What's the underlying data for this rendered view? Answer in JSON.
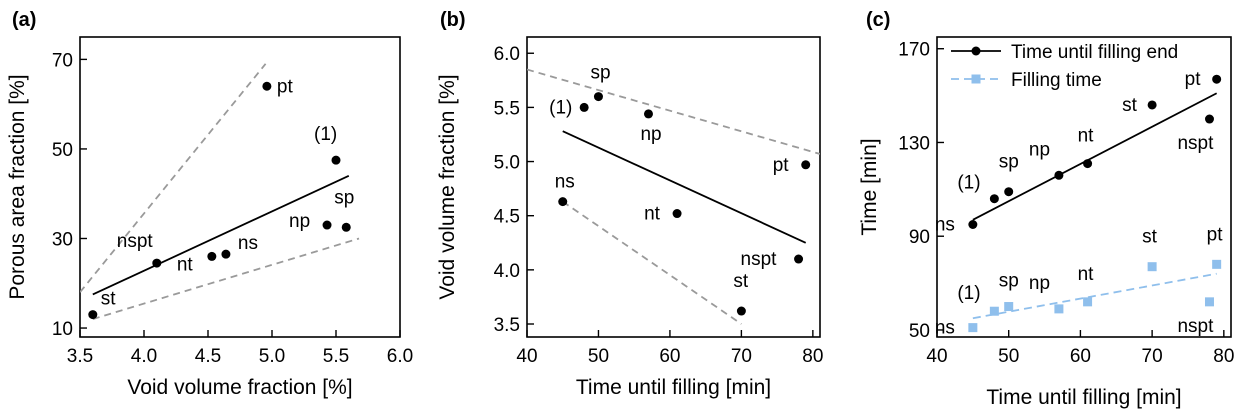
{
  "chart_data": [
    {
      "type": "scatter",
      "panel_label": "(a)",
      "xlabel": "Void volume fraction [%]",
      "ylabel": "Porous area fraction [%]",
      "xlim": [
        3.5,
        6.0
      ],
      "ylim": [
        8,
        75
      ],
      "xticks": [
        3.5,
        4.0,
        4.5,
        5.0,
        5.5,
        6.0
      ],
      "xtick_labels": [
        "3.5",
        "4.0",
        "4.5",
        "5.0",
        "5.5",
        "6.0"
      ],
      "yticks": [
        10,
        30,
        50,
        70
      ],
      "ytick_labels": [
        "10",
        "30",
        "50",
        "70"
      ],
      "points": [
        {
          "label": "st",
          "x": 3.6,
          "y": 13
        },
        {
          "label": "nspt",
          "x": 4.1,
          "y": 24.5
        },
        {
          "label": "nt",
          "x": 4.53,
          "y": 26
        },
        {
          "label": "ns",
          "x": 4.64,
          "y": 26.5
        },
        {
          "label": "pt",
          "x": 4.96,
          "y": 64
        },
        {
          "label": "(1)",
          "x": 5.5,
          "y": 47.5
        },
        {
          "label": "np",
          "x": 5.43,
          "y": 33
        },
        {
          "label": "sp",
          "x": 5.58,
          "y": 32.5
        }
      ],
      "fit_line": {
        "x": [
          3.6,
          5.6
        ],
        "y": [
          17.5,
          44
        ]
      },
      "bound_lines": [
        {
          "x": [
            3.5,
            4.95
          ],
          "y": [
            18,
            69
          ]
        },
        {
          "x": [
            3.6,
            5.68
          ],
          "y": [
            12,
            30
          ]
        }
      ]
    },
    {
      "type": "scatter",
      "panel_label": "(b)",
      "xlabel": "Time until filling [min]",
      "ylabel": "Void volume fraction [%]",
      "xlim": [
        40,
        81
      ],
      "ylim": [
        3.38,
        6.15
      ],
      "xticks": [
        40,
        50,
        60,
        70,
        80
      ],
      "xtick_labels": [
        "40",
        "50",
        "60",
        "70",
        "80"
      ],
      "yticks": [
        3.5,
        4.0,
        4.5,
        5.0,
        5.5,
        6.0
      ],
      "ytick_labels": [
        "3.5",
        "4.0",
        "4.5",
        "5.0",
        "5.5",
        "6.0"
      ],
      "points": [
        {
          "label": "ns",
          "x": 45,
          "y": 4.63
        },
        {
          "label": "(1)",
          "x": 48,
          "y": 5.5
        },
        {
          "label": "sp",
          "x": 50,
          "y": 5.6
        },
        {
          "label": "np",
          "x": 57,
          "y": 5.44
        },
        {
          "label": "nt",
          "x": 61,
          "y": 4.52
        },
        {
          "label": "st",
          "x": 70,
          "y": 3.62
        },
        {
          "label": "nspt",
          "x": 78,
          "y": 4.1
        },
        {
          "label": "pt",
          "x": 79,
          "y": 4.97
        }
      ],
      "fit_line": {
        "x": [
          45,
          79
        ],
        "y": [
          5.28,
          4.25
        ]
      },
      "bound_lines": [
        {
          "x": [
            40,
            81
          ],
          "y": [
            5.85,
            5.07
          ]
        },
        {
          "x": [
            45,
            70
          ],
          "y": [
            4.63,
            3.5
          ]
        }
      ]
    },
    {
      "type": "scatter",
      "panel_label": "(c)",
      "xlabel": "Time until filling [min]",
      "ylabel": "Time [min]",
      "xlim": [
        40,
        81
      ],
      "ylim": [
        47,
        175
      ],
      "xticks": [
        40,
        50,
        60,
        70,
        80
      ],
      "xtick_labels": [
        "40",
        "50",
        "60",
        "70",
        "80"
      ],
      "yticks": [
        50,
        90,
        130,
        170
      ],
      "ytick_labels": [
        "50",
        "90",
        "130",
        "170"
      ],
      "legend": "top-left",
      "series": [
        {
          "name": "Time until filling end",
          "color": "#000000",
          "marker": "circle",
          "line": "solid",
          "points": [
            {
              "label": "ns",
              "x": 45,
              "y": 95
            },
            {
              "label": "(1)",
              "x": 48,
              "y": 106
            },
            {
              "label": "sp",
              "x": 50,
              "y": 109
            },
            {
              "label": "np",
              "x": 57,
              "y": 116
            },
            {
              "label": "nt",
              "x": 61,
              "y": 121
            },
            {
              "label": "st",
              "x": 70,
              "y": 146
            },
            {
              "label": "nspt",
              "x": 78,
              "y": 140
            },
            {
              "label": "pt",
              "x": 79,
              "y": 157
            }
          ],
          "fit_line": {
            "x": [
              45,
              79
            ],
            "y": [
              97,
              151
            ]
          }
        },
        {
          "name": "Filling time",
          "color": "#8fbfec",
          "marker": "square",
          "line": "dashed",
          "points": [
            {
              "label": "ns",
              "x": 45,
              "y": 51
            },
            {
              "label": "(1)",
              "x": 48,
              "y": 58
            },
            {
              "label": "sp",
              "x": 50,
              "y": 60
            },
            {
              "label": "np",
              "x": 57,
              "y": 59
            },
            {
              "label": "nt",
              "x": 61,
              "y": 62
            },
            {
              "label": "st",
              "x": 70,
              "y": 77
            },
            {
              "label": "nspt",
              "x": 78,
              "y": 62
            },
            {
              "label": "pt",
              "x": 79,
              "y": 78
            }
          ],
          "fit_line": {
            "x": [
              45,
              79
            ],
            "y": [
              55,
              74
            ]
          }
        }
      ]
    }
  ]
}
